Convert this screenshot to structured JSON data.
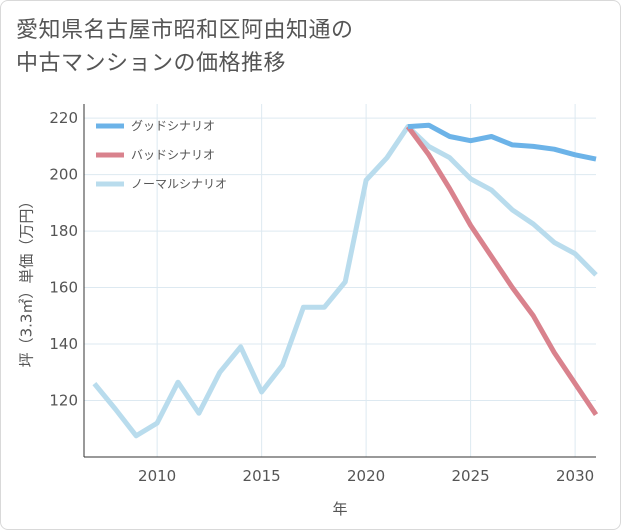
{
  "title": {
    "line1": "愛知県名古屋市昭和区阿由知通の",
    "line2": "中古マンションの価格推移"
  },
  "chart_data": {
    "type": "line",
    "title": "愛知県名古屋市昭和区阿由知通の中古マンションの価格推移",
    "xlabel": "年",
    "ylabel": "坪（3.3㎡）単価（万円）",
    "xlim": [
      2006.5,
      2031
    ],
    "ylim": [
      100,
      225
    ],
    "xticks": [
      2010,
      2015,
      2020,
      2025,
      2030
    ],
    "yticks": [
      120,
      140,
      160,
      180,
      200,
      220
    ],
    "grid": true,
    "legend_position": "top-left",
    "series": [
      {
        "name": "グッドシナリオ",
        "color": "#6cb3e8",
        "x": [
          2022,
          2023,
          2024,
          2025,
          2026,
          2027,
          2028,
          2029,
          2030,
          2031
        ],
        "values": [
          217,
          217.5,
          213.5,
          212,
          213.5,
          210.5,
          210,
          209,
          207,
          205.5
        ]
      },
      {
        "name": "バッドシナリオ",
        "color": "#d9828d",
        "x": [
          2022,
          2023,
          2024,
          2025,
          2026,
          2027,
          2028,
          2029,
          2030,
          2031
        ],
        "values": [
          217,
          207,
          195,
          182,
          171,
          160,
          150,
          137,
          126,
          115
        ]
      },
      {
        "name": "ノーマルシナリオ",
        "color": "#b9dced",
        "x": [
          2007,
          2008,
          2009,
          2010,
          2011,
          2012,
          2013,
          2014,
          2015,
          2016,
          2017,
          2018,
          2019,
          2020,
          2021,
          2022,
          2023,
          2024,
          2025,
          2026,
          2027,
          2028,
          2029,
          2030,
          2031
        ],
        "values": [
          126,
          117,
          107.5,
          112,
          126.5,
          115.5,
          130,
          139,
          123,
          132.5,
          153,
          153,
          162,
          198,
          206,
          217,
          210,
          206,
          198.5,
          194.5,
          187.5,
          182.5,
          176,
          172,
          164.5
        ]
      }
    ]
  }
}
